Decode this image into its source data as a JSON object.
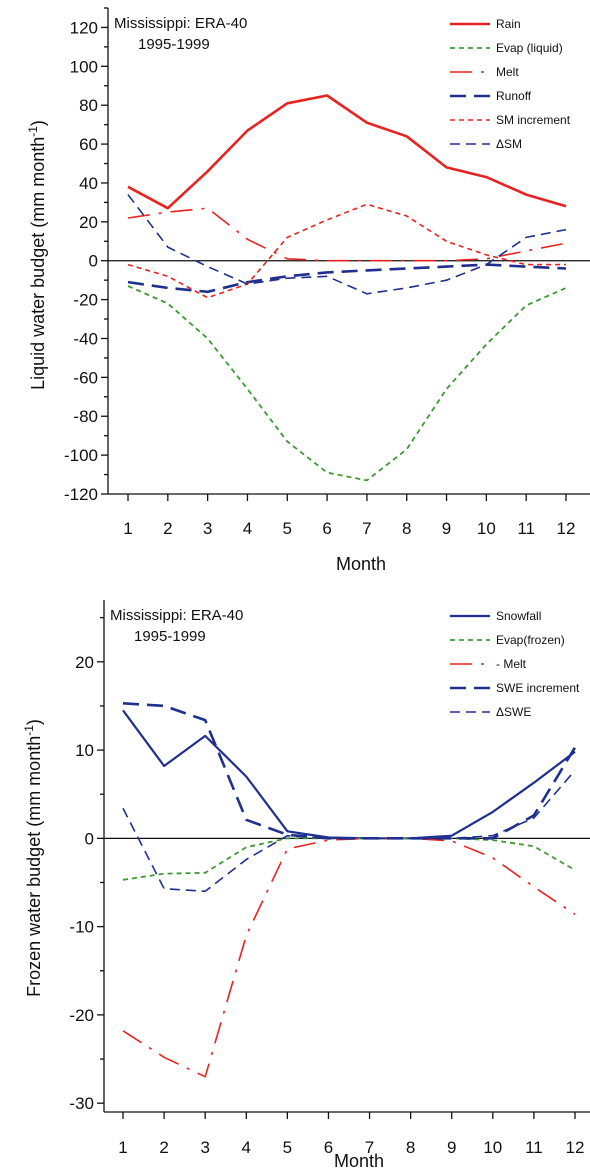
{
  "chart_data": [
    {
      "type": "line",
      "title": "Mississippi: ERA-40",
      "subtitle": "1995-1999",
      "xlabel": "Month",
      "ylabel": "Liquid water budget (mm month",
      "ylabel_sup": "-1",
      "ylabel_close": ")",
      "xlim": [
        1,
        12
      ],
      "ylim": [
        -120,
        130
      ],
      "x": [
        1,
        2,
        3,
        4,
        5,
        6,
        7,
        8,
        9,
        10,
        11,
        12
      ],
      "x_ticks": [
        "1",
        "2",
        "3",
        "4",
        "5",
        "6",
        "7",
        "8",
        "9",
        "10",
        "11",
        "12"
      ],
      "y_ticks": [
        "120",
        "100",
        "80",
        "60",
        "40",
        "20",
        "0",
        "-20",
        "-40",
        "-60",
        "-80",
        "-100",
        "-120"
      ],
      "y_tick_values": [
        120,
        100,
        80,
        60,
        40,
        20,
        0,
        -20,
        -40,
        -60,
        -80,
        -100,
        -120
      ],
      "zero_line": true,
      "legend_position": "top-right",
      "series": [
        {
          "name": "Rain",
          "color": "#e8231f",
          "dash": "solid",
          "width": 2.6,
          "values": [
            38,
            27,
            46,
            67,
            81,
            85,
            71,
            64,
            48,
            43,
            34,
            28
          ]
        },
        {
          "name": "Evap (liquid)",
          "color": "#3d9a33",
          "dash": "short",
          "width": 1.8,
          "values": [
            -13,
            -22,
            -40,
            -66,
            -93,
            -109,
            -113,
            -97,
            -66,
            -43,
            -23,
            -14
          ]
        },
        {
          "name": "Melt",
          "color": "#e8231f",
          "dash": "long-dot",
          "width": 1.6,
          "values": [
            22,
            25,
            27,
            11,
            1,
            0,
            0,
            0,
            0,
            1,
            5,
            9
          ]
        },
        {
          "name": "Runoff",
          "color": "#1f2f8f",
          "dash": "long",
          "width": 2.6,
          "values": [
            -11,
            -14,
            -16,
            -11,
            -8,
            -6,
            -5,
            -4,
            -3,
            -2,
            -3,
            -4
          ]
        },
        {
          "name": "SM increment",
          "color": "#e8231f",
          "dash": "short",
          "width": 1.6,
          "values": [
            -2,
            -8,
            -19,
            -12,
            12,
            21,
            29,
            23,
            10,
            3,
            -2,
            -2
          ]
        },
        {
          "name": "ΔSM",
          "color": "#1f2f8f",
          "dash": "medium",
          "width": 1.6,
          "values": [
            34,
            7,
            -3,
            -12,
            -9,
            -8,
            -17,
            -14,
            -10,
            -2,
            12,
            16
          ]
        }
      ]
    },
    {
      "type": "line",
      "title": "Mississippi: ERA-40",
      "subtitle": "1995-1999",
      "xlabel": "Month",
      "ylabel": "Frozen water budget (mm month",
      "ylabel_sup": "-1",
      "ylabel_close": ")",
      "xlim": [
        1,
        12
      ],
      "ylim": [
        -31,
        27
      ],
      "x": [
        1,
        2,
        3,
        4,
        5,
        6,
        7,
        8,
        9,
        10,
        11,
        12
      ],
      "x_ticks": [
        "1",
        "2",
        "3",
        "4",
        "5",
        "6",
        "7",
        "8",
        "9",
        "10",
        "11",
        "12"
      ],
      "y_ticks": [
        "20",
        "10",
        "0",
        "-10",
        "-20",
        "-30"
      ],
      "y_tick_values": [
        20,
        10,
        0,
        -10,
        -20,
        -30
      ],
      "zero_line": true,
      "legend_position": "top-right",
      "series": [
        {
          "name": "Snowfall",
          "color": "#1f2f8f",
          "dash": "solid",
          "width": 2.2,
          "values": [
            14.5,
            8.2,
            11.6,
            7.0,
            0.8,
            0.1,
            0,
            0,
            0.3,
            3.0,
            6.3,
            9.8
          ]
        },
        {
          "name": "Evap(frozen)",
          "color": "#3d9a33",
          "dash": "short",
          "width": 1.8,
          "values": [
            -4.7,
            -4.0,
            -3.9,
            -1.0,
            0,
            0,
            0,
            0,
            0,
            -0.2,
            -0.9,
            -3.6
          ]
        },
        {
          "name": "- Melt",
          "color": "#e8231f",
          "dash": "long-dot",
          "width": 1.6,
          "values": [
            -21.8,
            -24.8,
            -27.0,
            -11.0,
            -1.2,
            -0.2,
            0,
            0,
            -0.3,
            -2.2,
            -5.5,
            -8.6
          ]
        },
        {
          "name": "SWE increment",
          "color": "#1f2f8f",
          "dash": "long",
          "width": 2.6,
          "values": [
            15.3,
            15.0,
            13.4,
            2.1,
            0.4,
            0,
            0,
            0,
            0,
            0,
            2.6,
            10.3
          ]
        },
        {
          "name": "ΔSWE",
          "color": "#1f2f8f",
          "dash": "medium",
          "width": 1.6,
          "values": [
            3.4,
            -5.7,
            -6.0,
            -2.4,
            0.3,
            0,
            0,
            0,
            0,
            0.3,
            2.3,
            7.7
          ]
        }
      ]
    }
  ]
}
